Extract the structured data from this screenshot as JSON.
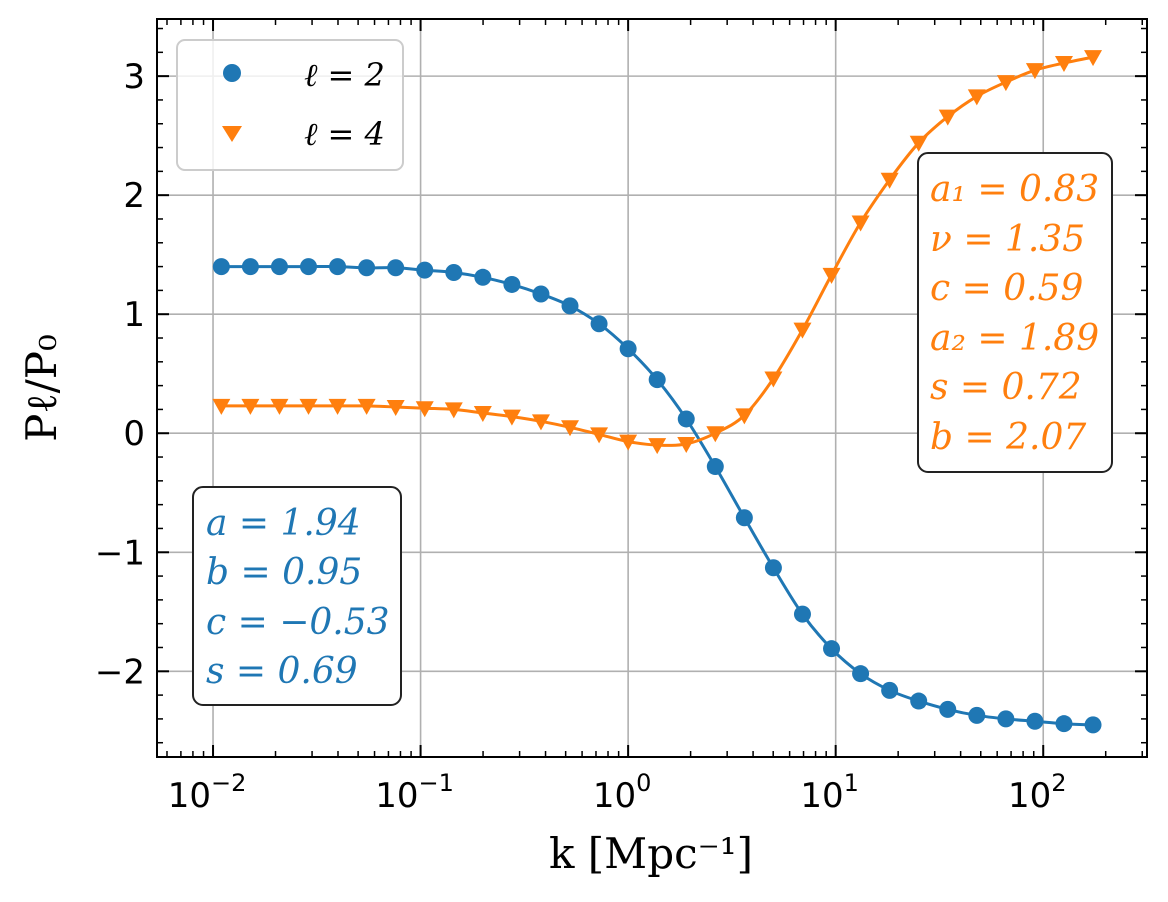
{
  "chart_data": {
    "type": "line",
    "xscale": "log",
    "xlim_log10": [
      -2.27,
      2.5
    ],
    "ylim": [
      -2.72,
      3.48
    ],
    "xticks": [
      {
        "exp": -2,
        "label": "10",
        "sup": "−2"
      },
      {
        "exp": -1,
        "label": "10",
        "sup": "−1"
      },
      {
        "exp": 0,
        "label": "10",
        "sup": "0"
      },
      {
        "exp": 1,
        "label": "10",
        "sup": "1"
      },
      {
        "exp": 2,
        "label": "10",
        "sup": "2"
      }
    ],
    "yticks": [
      {
        "v": -2,
        "label": "−2"
      },
      {
        "v": -1,
        "label": "−1"
      },
      {
        "v": 0,
        "label": "0"
      },
      {
        "v": 1,
        "label": "1"
      },
      {
        "v": 2,
        "label": "2"
      },
      {
        "v": 3,
        "label": "3"
      }
    ],
    "xlabel": "k [Mpc⁻¹]",
    "ylabel": "Pℓ/P₀",
    "grid": true,
    "legend_position": "top-left",
    "series": [
      {
        "name": "ℓ = 2",
        "color": "#1f77b4",
        "marker": "circle",
        "x_log10": [
          -1.96,
          -1.82,
          -1.68,
          -1.54,
          -1.4,
          -1.26,
          -1.12,
          -0.98,
          -0.84,
          -0.7,
          -0.56,
          -0.42,
          -0.28,
          -0.14,
          0.0,
          0.14,
          0.28,
          0.42,
          0.56,
          0.7,
          0.84,
          0.98,
          1.12,
          1.26,
          1.4,
          1.54,
          1.68,
          1.82,
          1.96,
          2.1,
          2.24
        ],
        "y": [
          1.4,
          1.4,
          1.4,
          1.4,
          1.4,
          1.39,
          1.39,
          1.37,
          1.35,
          1.31,
          1.25,
          1.17,
          1.07,
          0.92,
          0.71,
          0.45,
          0.12,
          -0.28,
          -0.71,
          -1.13,
          -1.52,
          -1.81,
          -2.02,
          -2.16,
          -2.25,
          -2.32,
          -2.37,
          -2.4,
          -2.42,
          -2.44,
          -2.45
        ]
      },
      {
        "name": "ℓ = 4",
        "color": "#ff7f0e",
        "marker": "triangle-down",
        "x_log10": [
          -1.96,
          -1.82,
          -1.68,
          -1.54,
          -1.4,
          -1.26,
          -1.12,
          -0.98,
          -0.84,
          -0.7,
          -0.56,
          -0.42,
          -0.28,
          -0.14,
          0.0,
          0.14,
          0.28,
          0.42,
          0.56,
          0.7,
          0.84,
          0.98,
          1.12,
          1.26,
          1.4,
          1.54,
          1.68,
          1.82,
          1.96,
          2.1,
          2.24
        ],
        "y": [
          0.23,
          0.23,
          0.23,
          0.23,
          0.23,
          0.23,
          0.22,
          0.21,
          0.2,
          0.17,
          0.14,
          0.1,
          0.05,
          -0.01,
          -0.07,
          -0.1,
          -0.09,
          0.0,
          0.15,
          0.46,
          0.87,
          1.33,
          1.77,
          2.13,
          2.44,
          2.66,
          2.83,
          2.95,
          3.05,
          3.11,
          3.16
        ]
      }
    ],
    "annotations": [
      {
        "position": "upper-right",
        "color": "#ff7f0e",
        "lines": [
          "a₁ = 0.83",
          "ν = 1.35",
          "c = 0.59",
          "a₂ = 1.89",
          "s = 0.72",
          "b = 2.07"
        ]
      },
      {
        "position": "lower-left",
        "color": "#1f77b4",
        "lines": [
          "a = 1.94",
          "b = 0.95",
          "c = −0.53",
          "s = 0.69"
        ]
      }
    ]
  }
}
